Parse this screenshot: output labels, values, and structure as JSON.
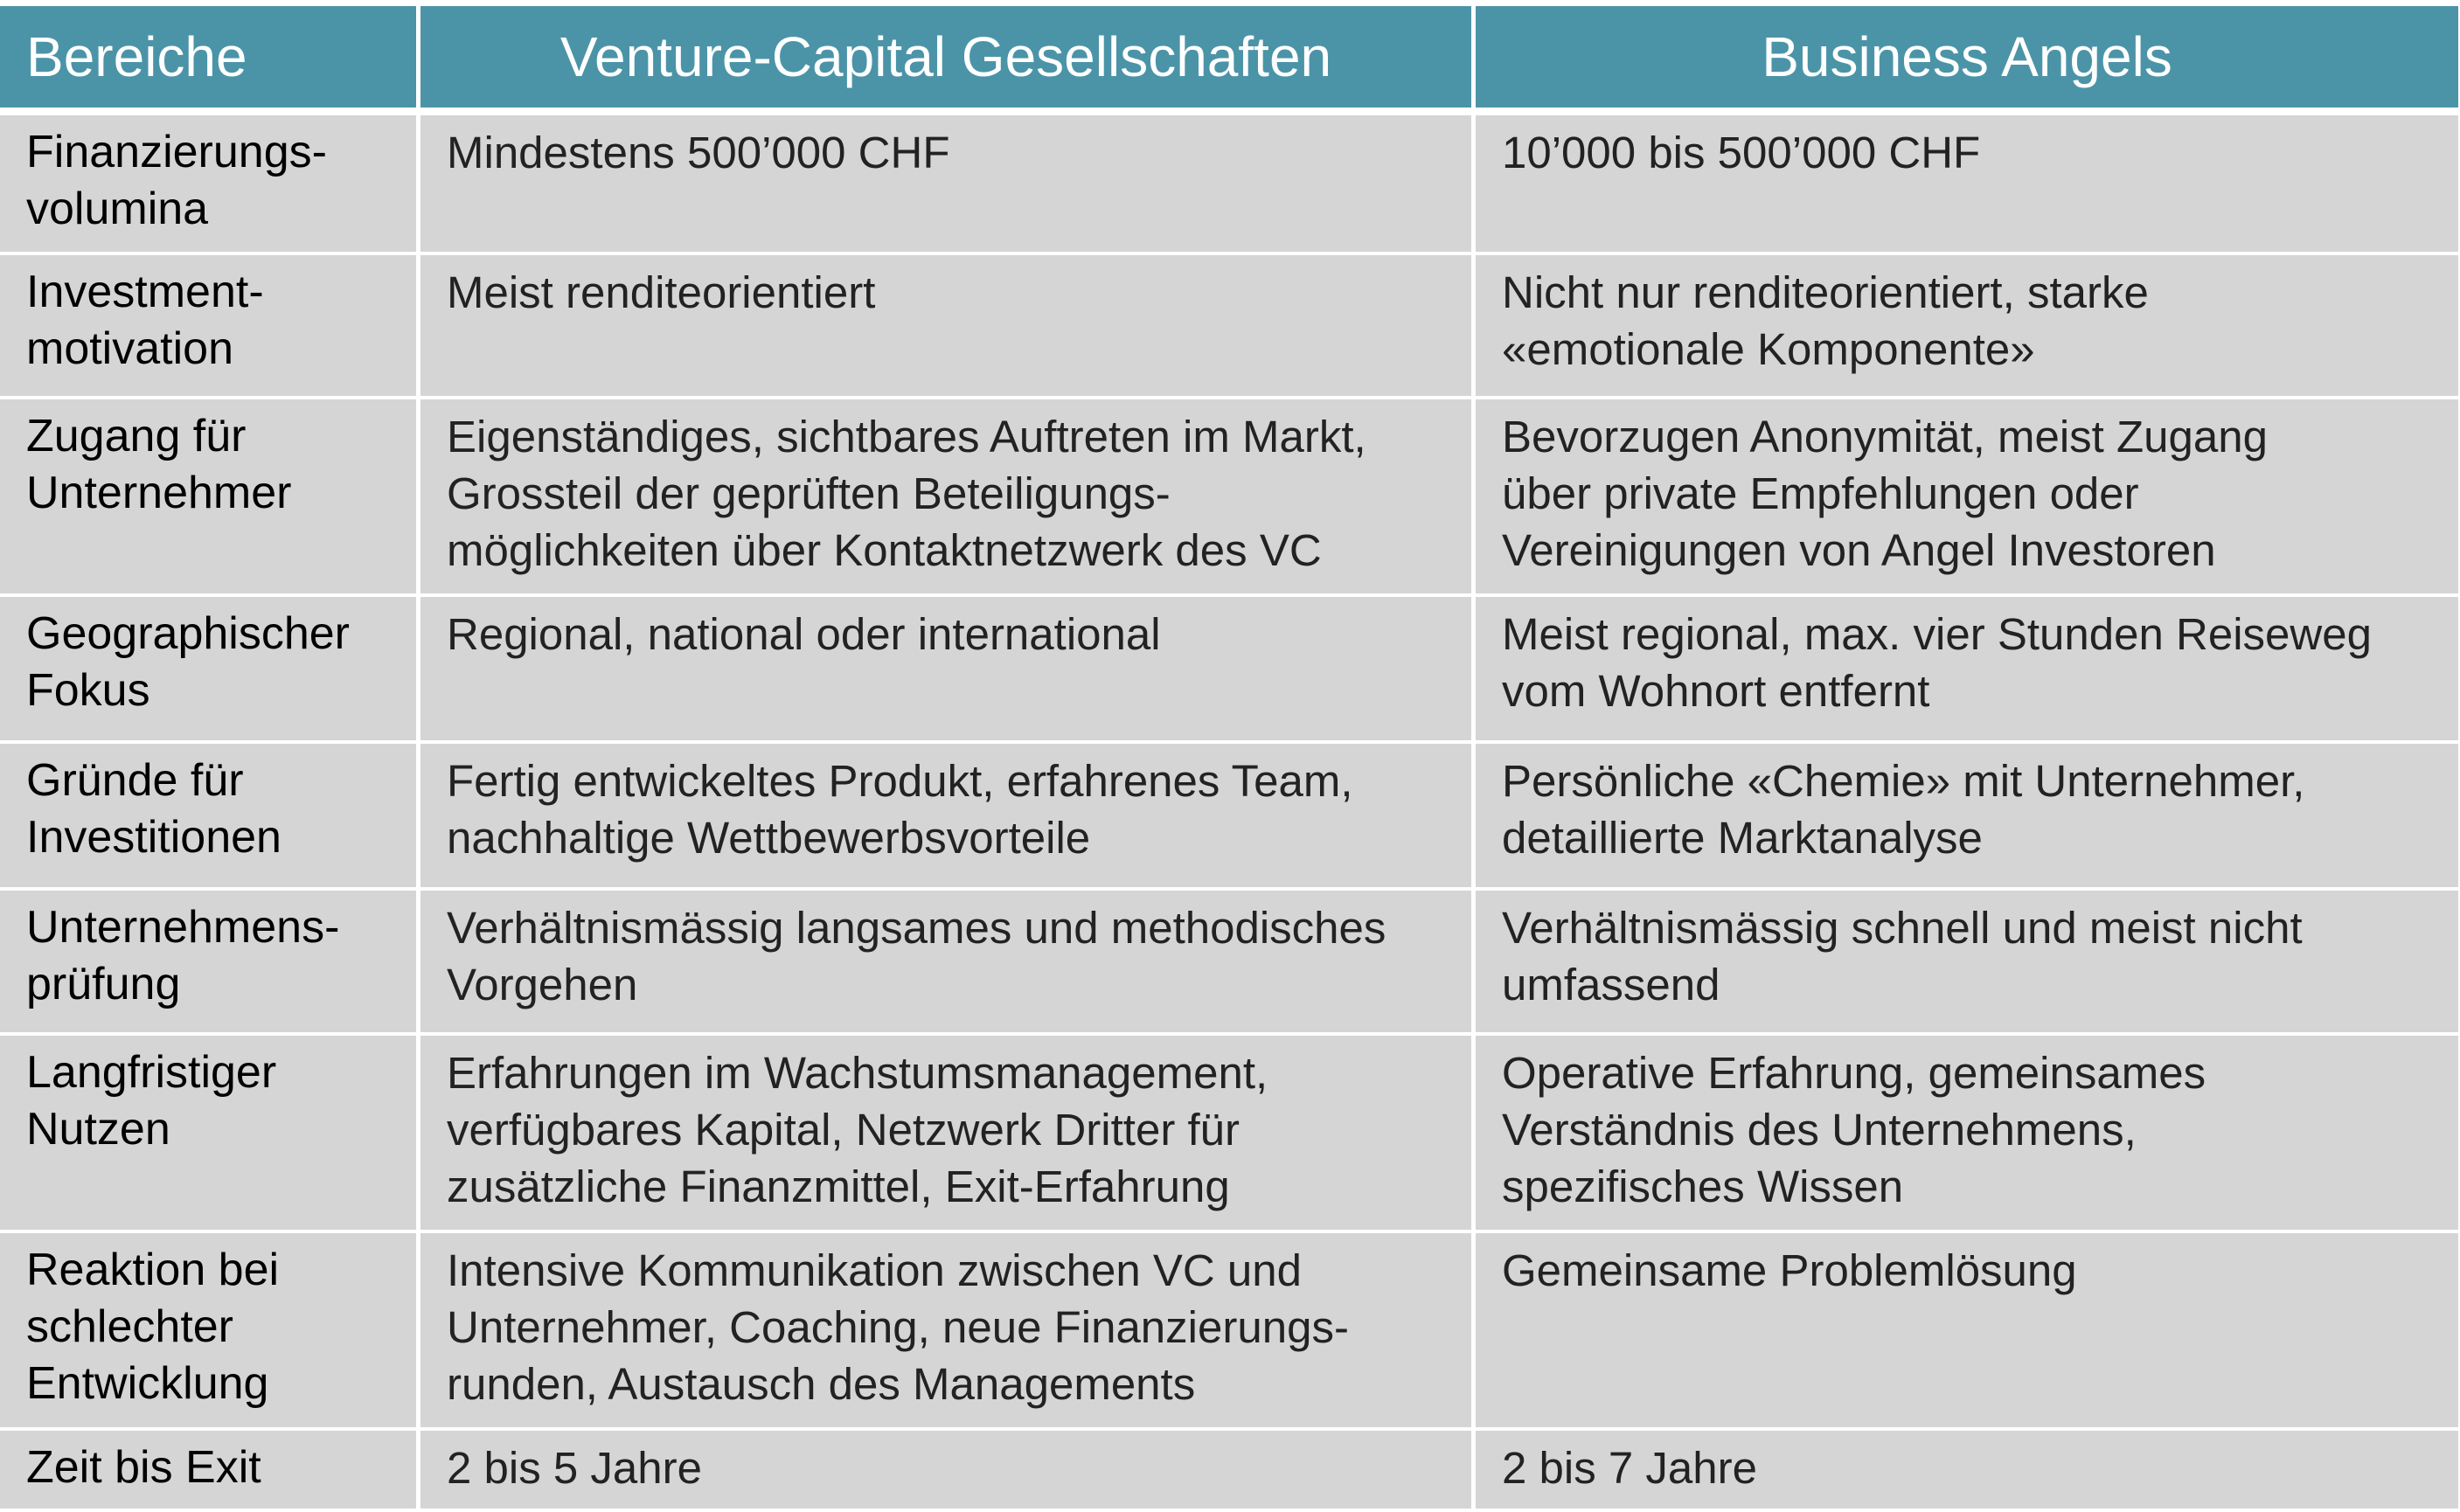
{
  "table": {
    "headers": [
      "Bereiche",
      "Venture-Capital Gesellschaften",
      "Business Angels"
    ],
    "rows": [
      {
        "area": "Finanzierungs-\nvolumina",
        "vc": "Mindestens 500’000 CHF",
        "ba": "10’000 bis 500’000 CHF"
      },
      {
        "area": "Investment-\nmotivation",
        "vc": "Meist renditeorientiert",
        "ba": "Nicht nur renditeorientiert, starke\n«emotionale Komponente»"
      },
      {
        "area": "Zugang für\nUnternehmer",
        "vc": "Eigenständiges, sichtbares  Auftreten im Markt,\nGrossteil der geprüften Beteiligungs-\nmöglichkeiten über Kontaktnetzwerk des VC",
        "ba": "Bevorzugen Anonymität, meist Zugang\nüber private Empfehlungen oder\nVereinigungen von Angel Investoren"
      },
      {
        "area": "Geographischer\nFokus",
        "vc": "Regional, national oder international",
        "ba": "Meist regional, max. vier Stunden Reiseweg\nvom Wohnort entfernt"
      },
      {
        "area": "Gründe für\nInvestitionen",
        "vc": "Fertig entwickeltes Produkt, erfahrenes Team,\nnachhaltige Wettbewerbsvorteile",
        "ba": "Persönliche «Chemie» mit Unternehmer,\ndetaillierte Marktanalyse"
      },
      {
        "area": "Unternehmens-\nprüfung",
        "vc": "Verhältnismässig langsames und methodisches\nVorgehen",
        "ba": "Verhältnismässig schnell und meist nicht\numfassend"
      },
      {
        "area": "Langfristiger\nNutzen",
        "vc": "Erfahrungen im Wachstumsmanagement,\nverfügbares Kapital, Netzwerk Dritter für\nzusätzliche Finanzmittel, Exit-Erfahrung",
        "ba": "Operative Erfahrung, gemeinsames\nVerständnis des Unternehmens,\nspezifisches Wissen"
      },
      {
        "area": "Reaktion bei\nschlechter\nEntwicklung",
        "vc": "Intensive Kommunikation zwischen VC und\nUnternehmer, Coaching, neue Finanzierungs-\nrunden, Austausch des Managements",
        "ba": "Gemeinsame Problemlösung"
      },
      {
        "area": "Zeit bis Exit",
        "vc": "2 bis 5 Jahre",
        "ba": "2 bis 7 Jahre"
      }
    ],
    "colors": {
      "header_bg": "#4b94a8",
      "header_text": "#ffffff",
      "cell_bg": "#d5d5d5",
      "cell_text": "#222222",
      "grid": "#ffffff"
    }
  }
}
